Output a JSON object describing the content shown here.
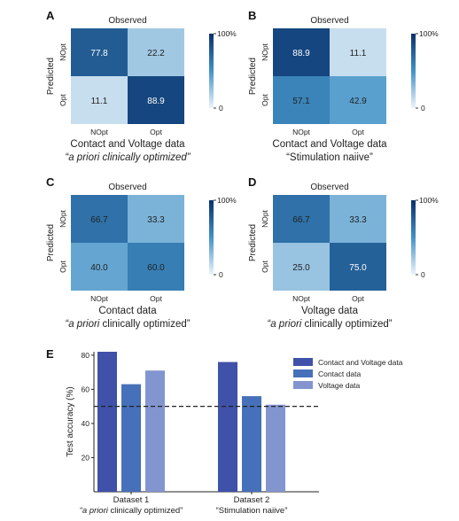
{
  "colors": {
    "heat_low": "#edf4fb",
    "heat_high": "#08306b",
    "bar_series": [
      "#3f51a8",
      "#4670b9",
      "#8395cf"
    ],
    "reference_line": "#222222"
  },
  "chart_data": [
    {
      "type": "heatmap",
      "panel": "A",
      "title": "Observed",
      "ylabel": "Predicted",
      "rows": [
        "NOpt",
        "Opt"
      ],
      "cols": [
        "NOpt",
        "Opt"
      ],
      "values": [
        [
          "77.8",
          "22.2"
        ],
        [
          "11.1",
          "88.9"
        ]
      ],
      "colorbar": {
        "max_label": "100%",
        "min_label": "0",
        "range": [
          0,
          100
        ]
      },
      "caption_line1": "Contact and Voltage data",
      "caption_line2_italic": "“a priori clinically optimized”",
      "caption_line2_rest": ""
    },
    {
      "type": "heatmap",
      "panel": "B",
      "title": "Observed",
      "ylabel": "Predicted",
      "rows": [
        "NOpt",
        "Opt"
      ],
      "cols": [
        "NOpt",
        "Opt"
      ],
      "values": [
        [
          "88.9",
          "11.1"
        ],
        [
          "57.1",
          "42.9"
        ]
      ],
      "colorbar": {
        "max_label": "100%",
        "min_label": "0",
        "range": [
          0,
          100
        ]
      },
      "caption_line1": "Contact and Voltage data",
      "caption_line2_italic": "",
      "caption_line2_rest": "“Stimulation naiive”"
    },
    {
      "type": "heatmap",
      "panel": "C",
      "title": "Observed",
      "ylabel": "Predicted",
      "rows": [
        "NOpt",
        "Opt"
      ],
      "cols": [
        "NOpt",
        "Opt"
      ],
      "values": [
        [
          "66.7",
          "33.3"
        ],
        [
          "40.0",
          "60.0"
        ]
      ],
      "colorbar": {
        "max_label": "100%",
        "min_label": "0",
        "range": [
          0,
          100
        ]
      },
      "caption_line1": "Contact data",
      "caption_line2_italic": "“a priori",
      "caption_line2_rest": " clinically optimized”"
    },
    {
      "type": "heatmap",
      "panel": "D",
      "title": "Observed",
      "ylabel": "Predicted",
      "rows": [
        "NOpt",
        "Opt"
      ],
      "cols": [
        "NOpt",
        "Opt"
      ],
      "values": [
        [
          "66.7",
          "33.3"
        ],
        [
          "25.0",
          "75.0"
        ]
      ],
      "colorbar": {
        "max_label": "100%",
        "min_label": "0",
        "range": [
          0,
          100
        ]
      },
      "caption_line1": "Voltage data",
      "caption_line2_italic": "“a priori",
      "caption_line2_rest": " clinically optimized”"
    },
    {
      "type": "bar",
      "panel": "E",
      "ylabel": "Test accuracy (%)",
      "ylim": [
        0,
        82
      ],
      "yticks": [
        20,
        40,
        60,
        80
      ],
      "reference_line": 50,
      "categories": [
        "Dataset 1",
        "Dataset 2"
      ],
      "category_sublabels_italic": [
        "“a priori",
        ""
      ],
      "category_sublabels_rest": [
        " clinically optimized”",
        "“Stimulation naiive”"
      ],
      "series": [
        {
          "name": "Contact and Voltage data",
          "values": [
            82,
            76
          ]
        },
        {
          "name": "Contact data",
          "values": [
            63,
            56
          ]
        },
        {
          "name": "Voltage data",
          "values": [
            71,
            51
          ]
        }
      ],
      "legend_position": "top-right"
    }
  ]
}
